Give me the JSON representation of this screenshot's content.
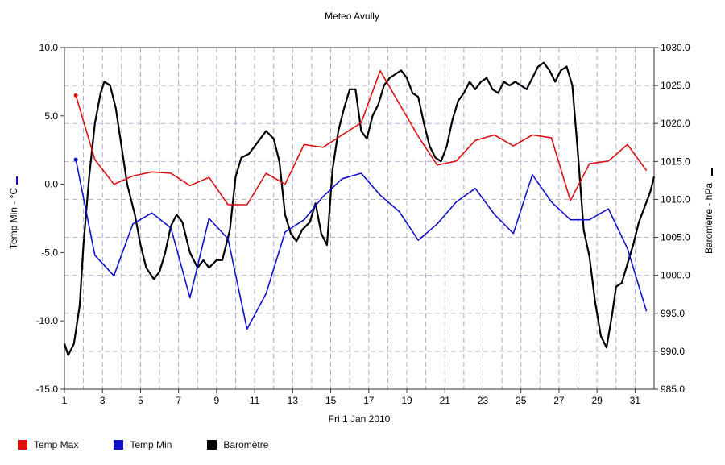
{
  "chart_data": {
    "type": "line",
    "title": "Meteo  Avully",
    "xlabel": "Fri 1 Jan 2010",
    "ylabel_left": "Temp Min - °C",
    "ylabel_right": "Baromètre - hPa",
    "xlim": [
      1,
      32
    ],
    "ylim_left": [
      -15,
      10
    ],
    "ylim_right": [
      985,
      1030
    ],
    "x_ticks": [
      "1",
      "3",
      "5",
      "7",
      "9",
      "11",
      "13",
      "15",
      "17",
      "19",
      "21",
      "23",
      "25",
      "27",
      "29",
      "31"
    ],
    "y_ticks_left": [
      "10.0",
      "5.0",
      "0.0",
      "-5.0",
      "-10.0",
      "-15.0"
    ],
    "y_ticks_right": [
      "1030.0",
      "1025.0",
      "1020.0",
      "1015.0",
      "1010.0",
      "1005.0",
      "1000.0",
      "995.0",
      "990.0",
      "985.0"
    ],
    "grid": true,
    "legend_position": "bottom-left",
    "series": [
      {
        "name": "Temp Max",
        "color": "#dd1111",
        "axis": "left",
        "x": [
          1.6,
          2.6,
          3.6,
          4.6,
          5.6,
          6.6,
          7.6,
          8.6,
          9.6,
          10.6,
          11.6,
          12.6,
          13.6,
          14.6,
          15.6,
          16.6,
          17.6,
          18.6,
          19.6,
          20.6,
          21.6,
          22.6,
          23.6,
          24.6,
          25.6,
          26.6,
          27.6,
          28.6,
          29.6,
          30.6,
          31.6
        ],
        "y": [
          6.5,
          1.8,
          0.0,
          0.6,
          0.9,
          0.8,
          -0.1,
          0.5,
          -1.5,
          -1.5,
          0.8,
          0.0,
          2.9,
          2.7,
          3.6,
          4.5,
          8.3,
          5.9,
          3.5,
          1.4,
          1.7,
          3.2,
          3.6,
          2.8,
          3.6,
          3.4,
          -1.2,
          1.5,
          1.7,
          2.9,
          1.0
        ]
      },
      {
        "name": "Temp Min",
        "color": "#1111cc",
        "axis": "left",
        "x": [
          1.6,
          2.6,
          3.6,
          4.6,
          5.6,
          6.6,
          7.6,
          8.6,
          9.6,
          10.6,
          11.6,
          12.6,
          13.6,
          14.6,
          15.6,
          16.6,
          17.6,
          18.6,
          19.6,
          20.6,
          21.6,
          22.6,
          23.6,
          24.6,
          25.6,
          26.6,
          27.6,
          28.6,
          29.6,
          30.6,
          31.6
        ],
        "y": [
          1.8,
          -5.2,
          -6.7,
          -2.9,
          -2.1,
          -3.2,
          -8.3,
          -2.5,
          -4.0,
          -10.6,
          -8.0,
          -3.5,
          -2.6,
          -0.9,
          0.4,
          0.8,
          -0.8,
          -2.0,
          -4.1,
          -2.9,
          -1.3,
          -0.3,
          -2.2,
          -3.6,
          0.7,
          -1.3,
          -2.6,
          -2.6,
          -1.8,
          -4.7,
          -9.3
        ]
      },
      {
        "name": "Baromètre",
        "color": "#000000",
        "axis": "right",
        "x": [
          1,
          1.2,
          1.5,
          1.8,
          2.0,
          2.3,
          2.6,
          2.9,
          3.1,
          3.4,
          3.7,
          4.0,
          4.3,
          4.7,
          5.0,
          5.3,
          5.7,
          6.0,
          6.3,
          6.6,
          6.9,
          7.2,
          7.6,
          8.0,
          8.3,
          8.6,
          9.0,
          9.3,
          9.7,
          10.0,
          10.3,
          10.7,
          11.0,
          11.3,
          11.6,
          12.0,
          12.3,
          12.6,
          12.9,
          13.2,
          13.5,
          13.9,
          14.2,
          14.5,
          14.8,
          15.1,
          15.4,
          15.7,
          16.0,
          16.3,
          16.6,
          16.9,
          17.2,
          17.5,
          17.8,
          18.1,
          18.4,
          18.7,
          19.0,
          19.3,
          19.6,
          19.9,
          20.2,
          20.5,
          20.8,
          21.1,
          21.4,
          21.7,
          22.0,
          22.3,
          22.6,
          22.9,
          23.2,
          23.5,
          23.8,
          24.1,
          24.4,
          24.7,
          25.0,
          25.3,
          25.6,
          25.9,
          26.2,
          26.5,
          26.8,
          27.1,
          27.4,
          27.7,
          28.0,
          28.3,
          28.6,
          28.9,
          29.2,
          29.5,
          29.8,
          30.0,
          30.3,
          30.6,
          30.9,
          31.2,
          31.5,
          31.8,
          32.0
        ],
        "y": [
          991,
          989.5,
          991,
          996,
          1004,
          1013,
          1020,
          1024,
          1025.5,
          1025,
          1022,
          1017,
          1012,
          1008,
          1004,
          1001,
          999.5,
          1000.5,
          1003,
          1006.5,
          1008,
          1007,
          1003,
          1001,
          1002,
          1001,
          1002,
          1002,
          1006,
          1013,
          1015.5,
          1016,
          1017,
          1018,
          1019,
          1018,
          1015,
          1008,
          1005.5,
          1004.5,
          1006,
          1007,
          1009.5,
          1005.5,
          1004,
          1014,
          1019,
          1022,
          1024.5,
          1024.5,
          1019,
          1018,
          1021,
          1022.5,
          1025,
          1026,
          1026.5,
          1027,
          1026,
          1024,
          1023.5,
          1020,
          1017,
          1015.5,
          1015,
          1017,
          1020.5,
          1023,
          1024,
          1025.5,
          1024.5,
          1025.5,
          1026,
          1024.5,
          1024,
          1025.5,
          1025,
          1025.5,
          1025,
          1024.5,
          1026,
          1027.5,
          1028,
          1027,
          1025.5,
          1027,
          1027.5,
          1025,
          1016,
          1006,
          1002.5,
          996.5,
          992,
          990.5,
          995,
          998.5,
          999,
          1001.5,
          1004,
          1007,
          1009,
          1011,
          1013
        ]
      }
    ]
  }
}
